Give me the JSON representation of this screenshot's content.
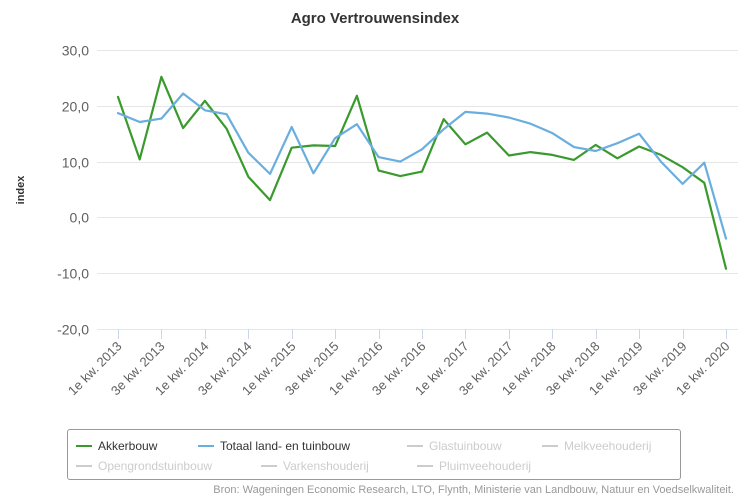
{
  "chart_data": {
    "type": "line",
    "title": "Agro Vertrouwensindex",
    "ylabel": "index",
    "xlabel": "",
    "ylim": [
      -20,
      30
    ],
    "yticks": [
      "30,0",
      "20,0",
      "10,0",
      "0,0",
      "-10,0",
      "-20,0"
    ],
    "ytick_values": [
      30,
      20,
      10,
      0,
      -10,
      -20
    ],
    "grid": true,
    "legend_position": "bottom",
    "x": [
      "1e kw. 2013",
      "2e kw. 2013",
      "3e kw. 2013",
      "4e kw. 2013",
      "1e kw. 2014",
      "2e kw. 2014",
      "3e kw. 2014",
      "4e kw. 2014",
      "1e kw. 2015",
      "2e kw. 2015",
      "3e kw. 2015",
      "4e kw. 2015",
      "1e kw. 2016",
      "2e kw. 2016",
      "3e kw. 2016",
      "4e kw. 2016",
      "1e kw. 2017",
      "2e kw. 2017",
      "3e kw. 2017",
      "4e kw. 2017",
      "1e kw. 2018",
      "2e kw. 2018",
      "3e kw. 2018",
      "4e kw. 2018",
      "1e kw. 2019",
      "2e kw. 2019",
      "3e kw. 2019",
      "4e kw. 2019",
      "1e kw. 2020"
    ],
    "x_tick_labels": [
      "1e kw. 2013",
      "3e kw. 2013",
      "1e kw. 2014",
      "3e kw. 2014",
      "1e kw. 2015",
      "3e kw. 2015",
      "1e kw. 2016",
      "3e kw. 2016",
      "1e kw. 2017",
      "3e kw. 2017",
      "1e kw. 2018",
      "3e kw. 2018",
      "1e kw. 2019",
      "3e kw. 2019",
      "1e kw. 2020"
    ],
    "series": [
      {
        "name": "Akkerbouw",
        "color": "#3a9a2e",
        "visible": true,
        "values": [
          21.6,
          10.4,
          25.2,
          16.0,
          20.9,
          15.9,
          7.3,
          3.1,
          12.5,
          12.9,
          12.8,
          21.8,
          8.4,
          7.4,
          8.2,
          17.6,
          13.1,
          15.2,
          11.1,
          11.7,
          11.2,
          10.3,
          13.0,
          10.6,
          12.7,
          11.2,
          9.0,
          6.2,
          -9.2
        ]
      },
      {
        "name": "Totaal land- en tuinbouw",
        "color": "#6aaee0",
        "visible": true,
        "values": [
          18.7,
          17.1,
          17.7,
          22.2,
          19.2,
          18.5,
          11.6,
          7.8,
          16.2,
          7.9,
          14.2,
          16.7,
          10.8,
          10.0,
          12.2,
          15.8,
          18.9,
          18.6,
          17.9,
          16.8,
          15.1,
          12.6,
          11.9,
          13.3,
          15.0,
          10.0,
          6.0,
          9.8,
          -3.8
        ]
      }
    ]
  },
  "legend": {
    "items": [
      {
        "label": "Akkerbouw",
        "color": "#3a9a2e",
        "active": true
      },
      {
        "label": "Totaal land- en tuinbouw",
        "color": "#6aaee0",
        "active": true
      },
      {
        "label": "Glastuinbouw",
        "color": "#cccccc",
        "active": false
      },
      {
        "label": "Melkveehouderij",
        "color": "#cccccc",
        "active": false
      },
      {
        "label": "Opengrondstuinbouw",
        "color": "#cccccc",
        "active": false
      },
      {
        "label": "Varkenshouderij",
        "color": "#cccccc",
        "active": false
      },
      {
        "label": "Pluimveehouderij",
        "color": "#cccccc",
        "active": false
      }
    ]
  },
  "source": "Bron: Wageningen Economic Research, LTO, Flynth, Ministerie van Landbouw, Natuur en Voedselkwaliteit."
}
